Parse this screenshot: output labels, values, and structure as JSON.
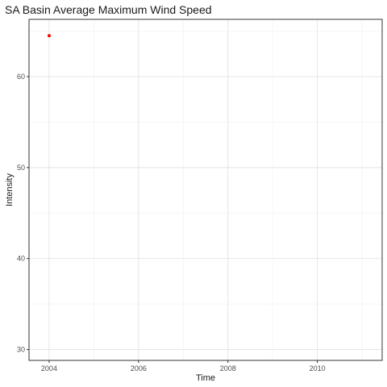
{
  "chart_data": {
    "type": "scatter",
    "title": "SA Basin Average Maximum Wind Speed",
    "xlabel": "Time",
    "ylabel": "Intensity",
    "xlim": [
      2003.55,
      2011.45
    ],
    "ylim": [
      28.8,
      66.3
    ],
    "x_ticks": [
      2004,
      2006,
      2008,
      2010
    ],
    "y_ticks": [
      30,
      40,
      50,
      60
    ],
    "x_tick_labels": [
      "2004",
      "2006",
      "2008",
      "2010"
    ],
    "y_tick_labels": [
      "30",
      "40",
      "50",
      "60"
    ],
    "grid": true,
    "legend": "none",
    "series": [
      {
        "x": [
          "2004"
        ],
        "values": [
          64.5
        ],
        "color": "#ff0000"
      }
    ]
  }
}
